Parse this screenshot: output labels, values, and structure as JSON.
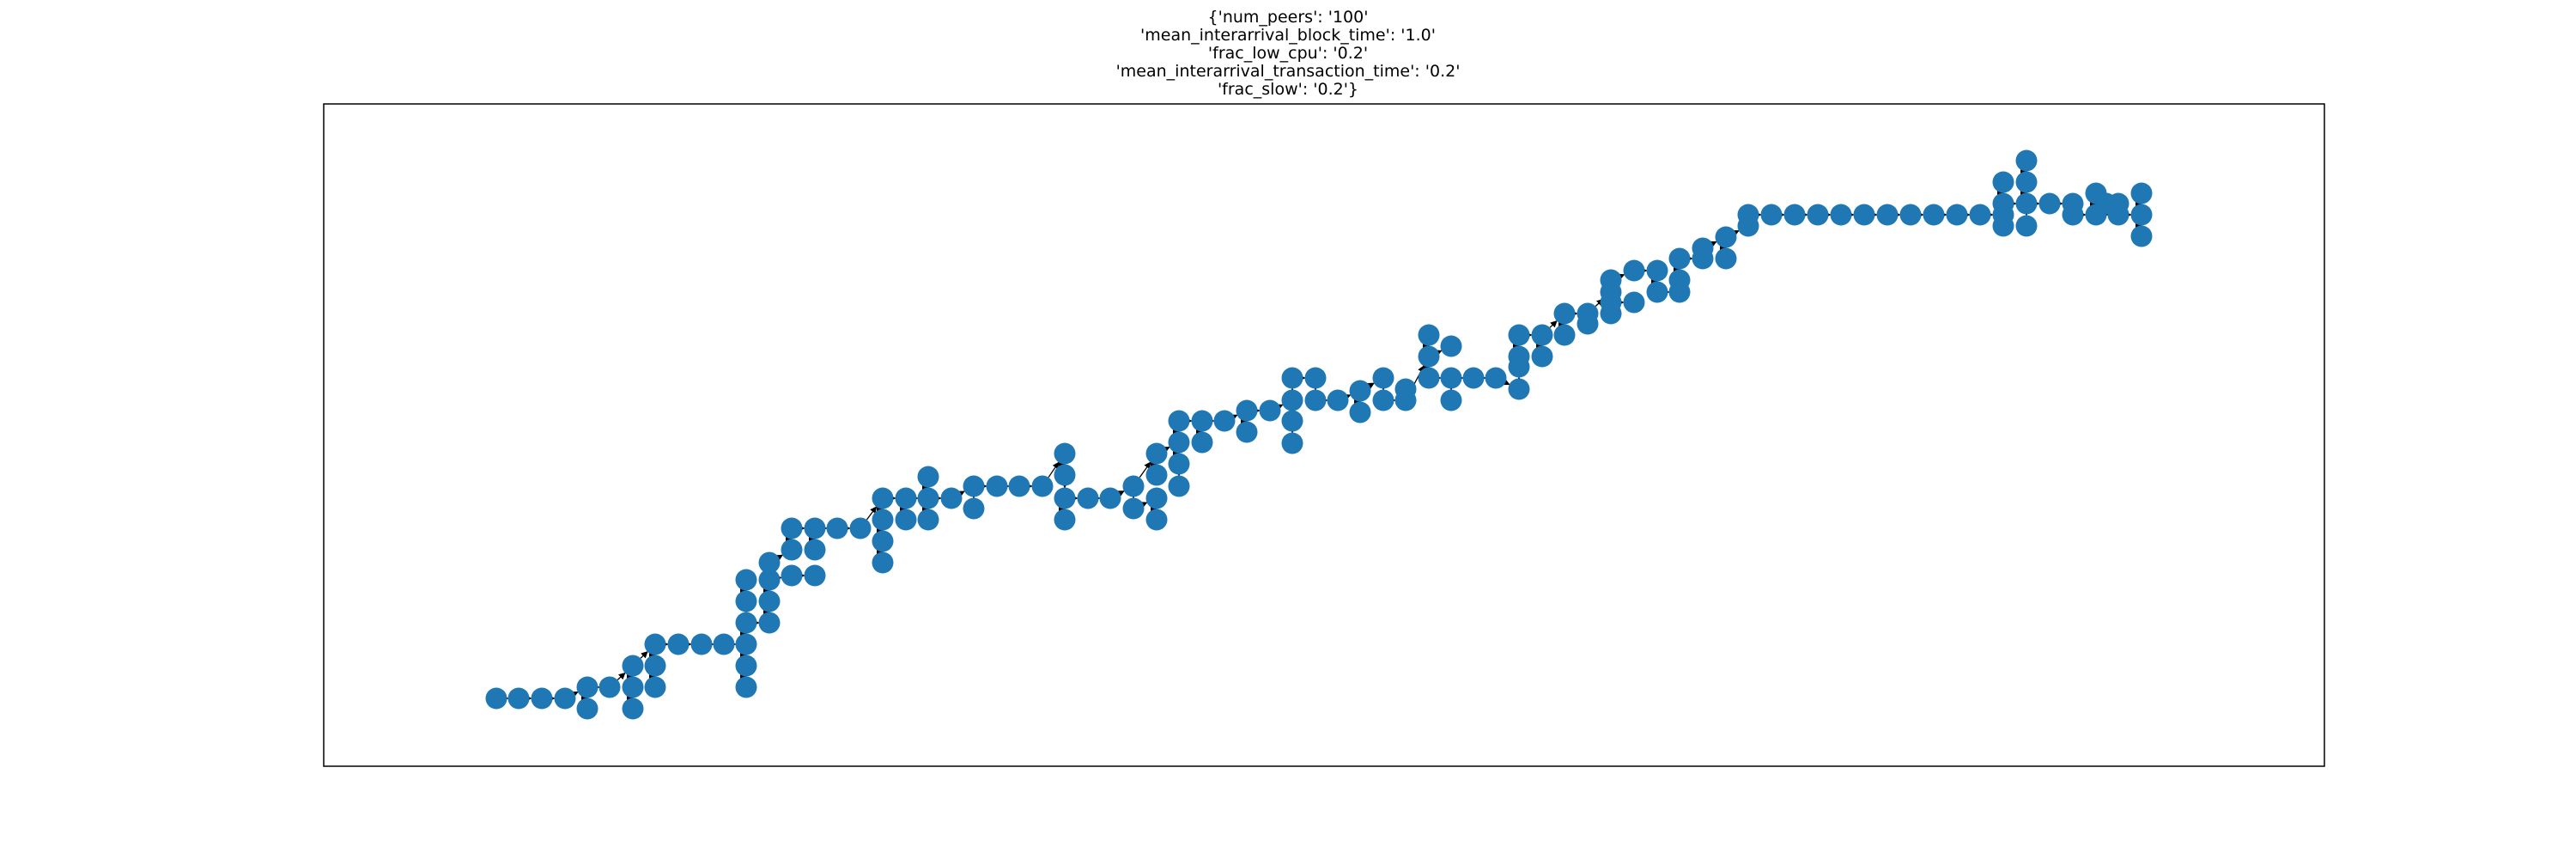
{
  "title_lines": [
    "{'num_peers': '100'",
    "'mean_interarrival_block_time': '1.0'",
    "'frac_low_cpu': '0.2'",
    "'mean_interarrival_transaction_time': '0.2'",
    "'frac_slow': '0.2'}"
  ],
  "colors": {
    "node": "#1f77b4",
    "edge": "#000000",
    "frame": "#000000"
  },
  "graph": {
    "type": "directed-tree",
    "node_count": 100
  }
}
